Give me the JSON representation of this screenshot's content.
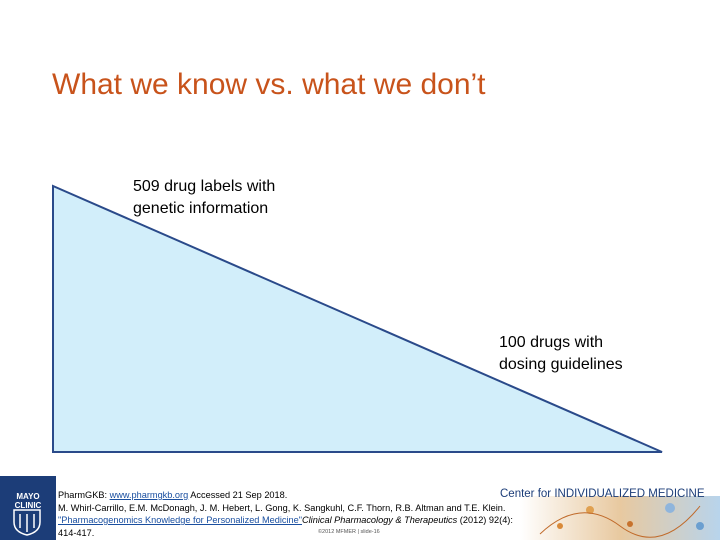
{
  "slide": {
    "title": "What we know vs. what we don’t"
  },
  "diagram": {
    "top_label_line1": "509 drug labels with",
    "top_label_line2": "genetic information",
    "bottom_label_line1": "100 drugs with",
    "bottom_label_line2": "dosing guidelines",
    "fill_color": "#d2eefa",
    "stroke_color": "#2a4a8a"
  },
  "footer": {
    "logo_line1": "MAYO",
    "logo_line2": "CLINIC",
    "ref_part1": "PharmGKB: ",
    "ref_link1": "www.pharmgkb.org",
    "ref_part2": " Accessed 21 Sep 2018.",
    "ref_part3": "M. Whirl-Carrillo, E.M. McDonagh, J. M. Hebert, L. Gong, K. Sangkuhl, C.F. Thorn, R.B. Altman and T.E. Klein. ",
    "ref_link2": "\"Pharmacogenomics Knowledge for Personalized Medicine\"",
    "ref_journal": "Clinical Pharmacology & Therapeutics",
    "ref_part4": " (2012) 92(4): 414-417.",
    "center_name": "Center for INDIVIDUALIZED MEDICINE",
    "copyright": "©2012 MFMER  |  slide-16",
    "brand_color": "#1c3d78"
  }
}
